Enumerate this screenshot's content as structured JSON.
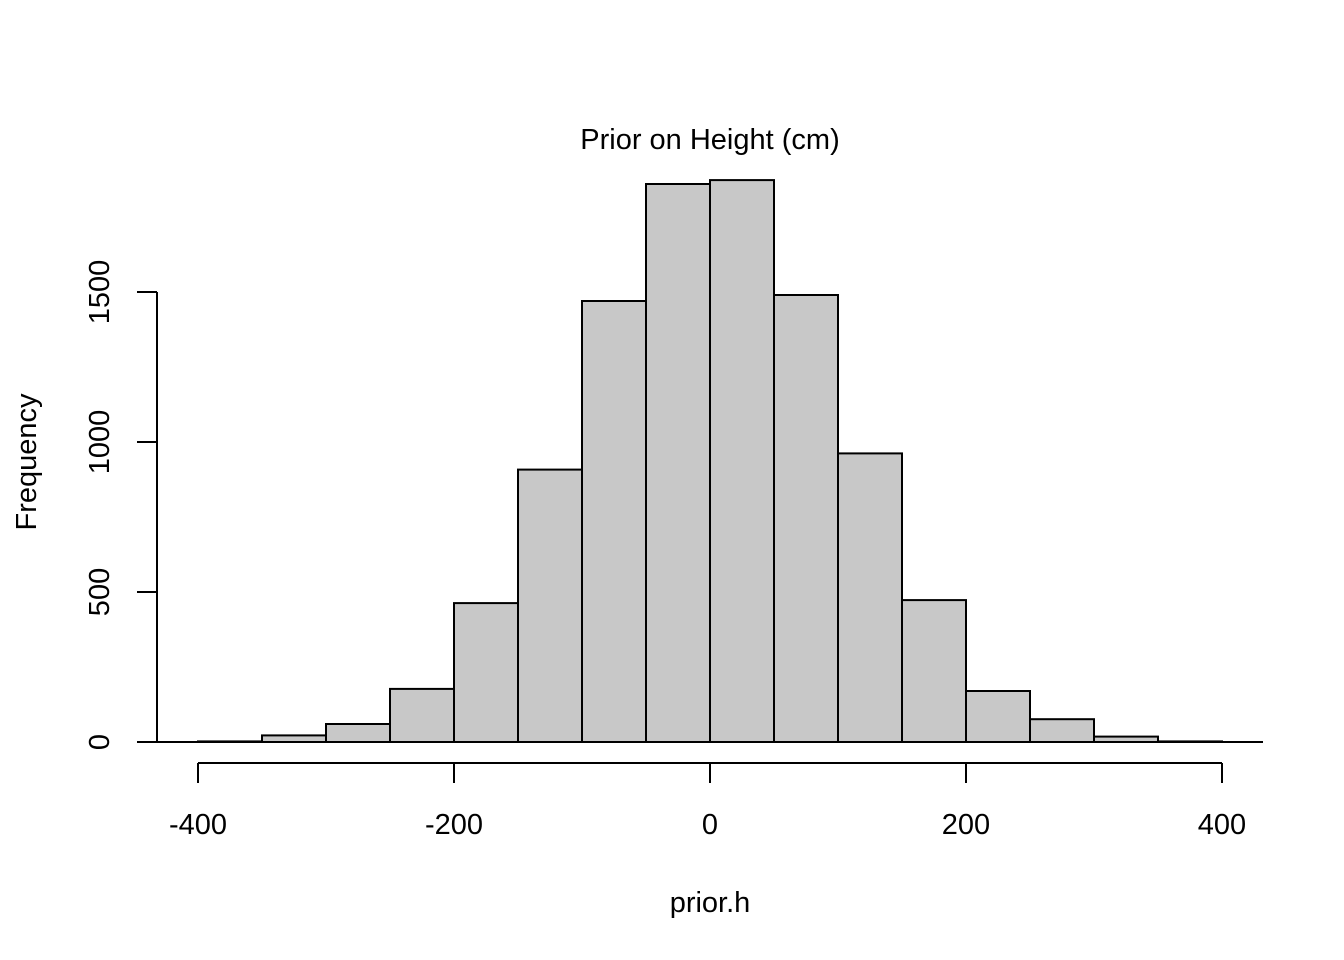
{
  "chart_data": {
    "type": "bar",
    "title": "Prior on Height (cm)",
    "xlabel": "prior.h",
    "ylabel": "Frequency",
    "bins": [
      [
        -400,
        -350
      ],
      [
        -350,
        -300
      ],
      [
        -300,
        -250
      ],
      [
        -250,
        -200
      ],
      [
        -200,
        -150
      ],
      [
        -150,
        -100
      ],
      [
        -100,
        -50
      ],
      [
        -50,
        0
      ],
      [
        0,
        50
      ],
      [
        50,
        100
      ],
      [
        100,
        150
      ],
      [
        150,
        200
      ],
      [
        200,
        250
      ],
      [
        250,
        300
      ],
      [
        300,
        350
      ],
      [
        350,
        400
      ]
    ],
    "values": [
      2,
      22,
      60,
      177,
      463,
      908,
      1470,
      1860,
      1873,
      1490,
      962,
      473,
      170,
      76,
      18,
      2
    ],
    "x_ticks": [
      -400,
      -200,
      0,
      200,
      400
    ],
    "y_ticks": [
      0,
      500,
      1000,
      1500
    ],
    "xlim": [
      -400,
      400
    ],
    "ylim": [
      0,
      1873
    ],
    "bar_color": "#c8c8c8",
    "grid": false,
    "legend": "none"
  }
}
